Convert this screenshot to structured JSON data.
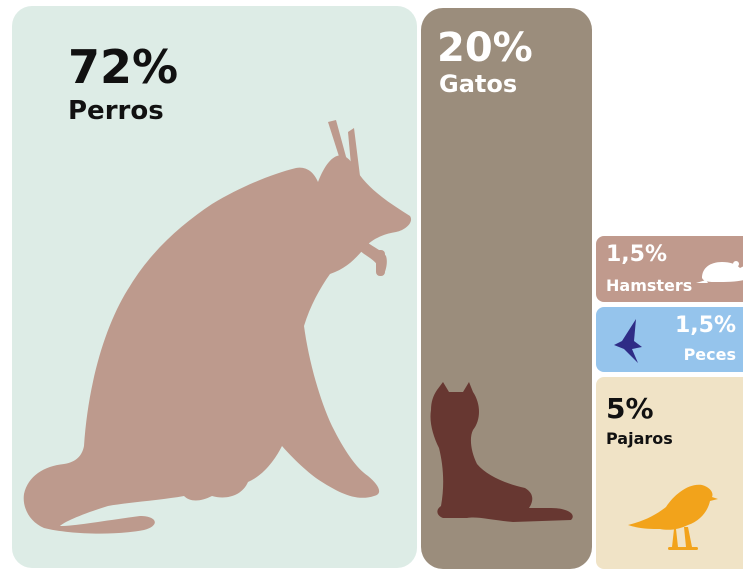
{
  "chart_data": {
    "type": "treemap",
    "categories": [
      "Perros",
      "Gatos",
      "Hamsters",
      "Peces",
      "Pajaros"
    ],
    "values": [
      72,
      20,
      1.5,
      1.5,
      5
    ],
    "labels": [
      "72%",
      "20%",
      "1,5%",
      "1,5%",
      "5%"
    ],
    "units": "%",
    "icons": [
      "dog-icon",
      "cat-icon",
      "hamster-icon",
      "fish-icon",
      "bird-icon"
    ],
    "colors": {
      "perros_bg": "#ddece6",
      "perros_icon": "#bd9a8d",
      "gatos_bg": "#9b8d7c",
      "gatos_icon": "#673731",
      "hamsters_bg": "#c09a8d",
      "hamsters_icon": "#ffffff",
      "peces_bg": "#95c4ec",
      "peces_icon": "#2f2c86",
      "pajaros_bg": "#f0e3c6",
      "pajaros_icon": "#f2a31b"
    }
  },
  "tiles": {
    "perros": {
      "pct": "72%",
      "label": "Perros"
    },
    "gatos": {
      "pct": "20%",
      "label": "Gatos"
    },
    "hamsters": {
      "pct": "1,5%",
      "label": "Hamsters"
    },
    "peces": {
      "pct": "1,5%",
      "label": "Peces"
    },
    "pajaros": {
      "pct": "5%",
      "label": "Pajaros"
    }
  }
}
